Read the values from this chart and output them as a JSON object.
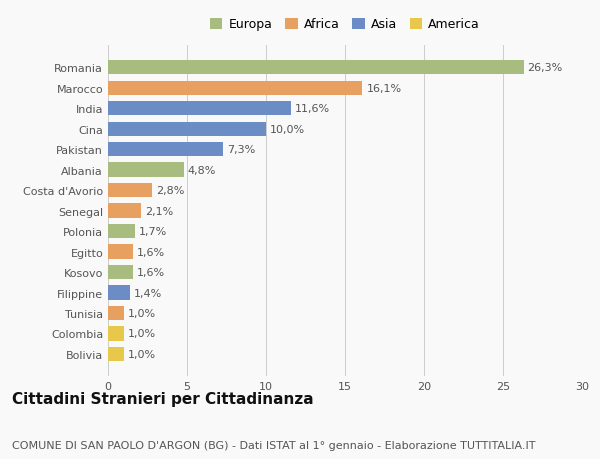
{
  "categories": [
    "Bolivia",
    "Colombia",
    "Tunisia",
    "Filippine",
    "Kosovo",
    "Egitto",
    "Polonia",
    "Senegal",
    "Costa d'Avorio",
    "Albania",
    "Pakistan",
    "Cina",
    "India",
    "Marocco",
    "Romania"
  ],
  "values": [
    1.0,
    1.0,
    1.0,
    1.4,
    1.6,
    1.6,
    1.7,
    2.1,
    2.8,
    4.8,
    7.3,
    10.0,
    11.6,
    16.1,
    26.3
  ],
  "labels": [
    "1,0%",
    "1,0%",
    "1,0%",
    "1,4%",
    "1,6%",
    "1,6%",
    "1,7%",
    "2,1%",
    "2,8%",
    "4,8%",
    "7,3%",
    "10,0%",
    "11,6%",
    "16,1%",
    "26,3%"
  ],
  "colors": [
    "#e8c84a",
    "#e8c84a",
    "#e8a060",
    "#6b8cc4",
    "#a8bc80",
    "#e8a060",
    "#a8bc80",
    "#e8a060",
    "#e8a060",
    "#a8bc80",
    "#6b8cc4",
    "#6b8cc4",
    "#6b8cc4",
    "#e8a060",
    "#a8bc80"
  ],
  "continent": [
    "America",
    "America",
    "Africa",
    "Asia",
    "Europa",
    "Africa",
    "Europa",
    "Africa",
    "Africa",
    "Europa",
    "Asia",
    "Asia",
    "Asia",
    "Africa",
    "Europa"
  ],
  "legend_labels": [
    "Europa",
    "Africa",
    "Asia",
    "America"
  ],
  "legend_colors": [
    "#a8bc80",
    "#e8a060",
    "#6b8cc4",
    "#e8c84a"
  ],
  "title": "Cittadini Stranieri per Cittadinanza",
  "subtitle": "COMUNE DI SAN PAOLO D'ARGON (BG) - Dati ISTAT al 1° gennaio - Elaborazione TUTTITALIA.IT",
  "xlim": [
    0,
    30
  ],
  "xticks": [
    0,
    5,
    10,
    15,
    20,
    25,
    30
  ],
  "background_color": "#f9f9f9",
  "bar_height": 0.7,
  "title_fontsize": 11,
  "subtitle_fontsize": 8,
  "label_fontsize": 8,
  "tick_fontsize": 8,
  "legend_fontsize": 9
}
